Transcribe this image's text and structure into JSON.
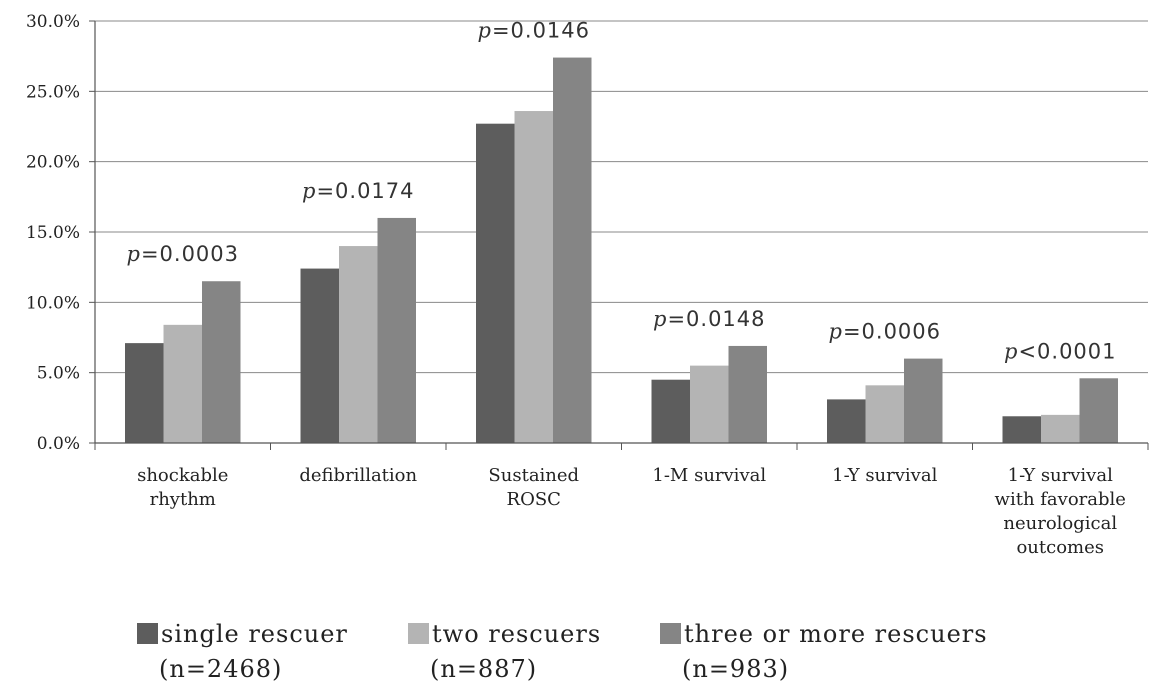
{
  "chart_data": {
    "type": "bar",
    "categories": [
      [
        "shockable",
        "rhythm"
      ],
      [
        "defibrillation"
      ],
      [
        "Sustained",
        "ROSC"
      ],
      [
        "1-M survival"
      ],
      [
        "1-Y survival"
      ],
      [
        "1-Y survival",
        "with favorable",
        "neurological",
        "outcomes"
      ]
    ],
    "series": [
      {
        "name": "single rescuer",
        "n_label": "(n=2468)",
        "color": "#5d5d5d",
        "values": [
          7.1,
          12.4,
          22.7,
          4.5,
          3.1,
          1.9
        ]
      },
      {
        "name": "two rescuers",
        "n_label": "(n=887)",
        "color": "#b4b4b4",
        "values": [
          8.4,
          14.0,
          23.6,
          5.5,
          4.1,
          2.0
        ]
      },
      {
        "name": "three or more rescuers",
        "n_label": "(n=983)",
        "color": "#858585",
        "values": [
          11.5,
          16.0,
          27.4,
          6.9,
          6.0,
          4.6
        ]
      }
    ],
    "p_values": [
      {
        "prefix": "p",
        "rest": "=0.0003"
      },
      {
        "prefix": "p",
        "rest": "=0.0174"
      },
      {
        "prefix": "p",
        "rest": "=0.0146"
      },
      {
        "prefix": "p",
        "rest": "=0.0148"
      },
      {
        "prefix": "p",
        "rest": "=0.0006"
      },
      {
        "prefix": "p",
        "rest": "<0.0001"
      }
    ],
    "y_ticks": [
      "0.0%",
      "5.0%",
      "10.0%",
      "15.0%",
      "20.0%",
      "25.0%",
      "30.0%"
    ],
    "ylim": [
      0,
      30
    ],
    "grid": true,
    "legend_position": "bottom",
    "title": "",
    "xlabel": "",
    "ylabel": ""
  }
}
